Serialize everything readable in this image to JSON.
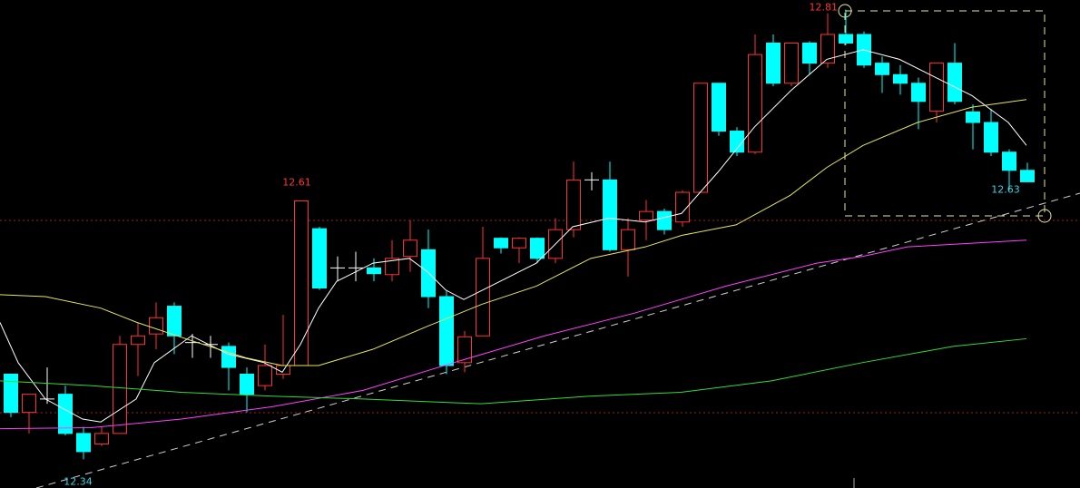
{
  "chart_data": {
    "type": "candlestick",
    "up_color": "#ff3232",
    "down_color": "#00ffff",
    "doji_color": "#ffffff",
    "ylim": [
      12.31,
      12.82
    ],
    "xlim": [
      -0.6,
      58.9
    ],
    "open": [
      12.429,
      12.389,
      12.403,
      12.408,
      12.367,
      12.356,
      12.367,
      12.46,
      12.471,
      12.5,
      12.462,
      12.46,
      12.458,
      12.429,
      12.417,
      12.429,
      12.438,
      12.581,
      12.54,
      12.54,
      12.54,
      12.533,
      12.552,
      12.559,
      12.51,
      12.441,
      12.469,
      12.571,
      12.561,
      12.571,
      12.55,
      12.58,
      12.632,
      12.632,
      12.559,
      12.59,
      12.599,
      12.588,
      12.619,
      12.733,
      12.683,
      12.661,
      12.775,
      12.733,
      12.775,
      12.754,
      12.784,
      12.784,
      12.754,
      12.742,
      12.733,
      12.704,
      12.754,
      12.703,
      12.692,
      12.661,
      12.642
    ],
    "high": [
      12.429,
      12.408,
      12.436,
      12.417,
      12.374,
      12.374,
      12.469,
      12.483,
      12.504,
      12.504,
      12.471,
      12.469,
      12.462,
      12.436,
      12.46,
      12.491,
      12.61,
      12.583,
      12.552,
      12.557,
      12.55,
      12.569,
      12.59,
      12.58,
      12.517,
      12.474,
      12.583,
      12.572,
      12.572,
      12.572,
      12.592,
      12.651,
      12.64,
      12.651,
      12.592,
      12.611,
      12.602,
      12.621,
      12.733,
      12.733,
      12.687,
      12.784,
      12.784,
      12.775,
      12.777,
      12.806,
      12.81,
      12.787,
      12.761,
      12.752,
      12.739,
      12.754,
      12.775,
      12.711,
      12.706,
      12.664,
      12.65
    ],
    "low": [
      12.384,
      12.367,
      12.398,
      12.365,
      12.34,
      12.354,
      12.367,
      12.427,
      12.455,
      12.45,
      12.446,
      12.446,
      12.412,
      12.389,
      12.412,
      12.424,
      12.438,
      12.517,
      12.526,
      12.526,
      12.526,
      12.526,
      12.536,
      12.498,
      12.429,
      12.431,
      12.469,
      12.555,
      12.545,
      12.545,
      12.545,
      12.572,
      12.621,
      12.557,
      12.531,
      12.569,
      12.575,
      12.583,
      12.619,
      12.678,
      12.657,
      12.659,
      12.73,
      12.73,
      12.742,
      12.749,
      12.773,
      12.749,
      12.723,
      12.721,
      12.685,
      12.692,
      12.711,
      12.664,
      12.657,
      12.621,
      12.63
    ],
    "close": [
      12.389,
      12.408,
      12.403,
      12.367,
      12.348,
      12.367,
      12.46,
      12.469,
      12.488,
      12.469,
      12.462,
      12.46,
      12.436,
      12.408,
      12.438,
      12.438,
      12.61,
      12.519,
      12.54,
      12.54,
      12.534,
      12.55,
      12.569,
      12.51,
      12.438,
      12.468,
      12.55,
      12.561,
      12.571,
      12.55,
      12.58,
      12.632,
      12.632,
      12.559,
      12.58,
      12.599,
      12.58,
      12.619,
      12.733,
      12.683,
      12.661,
      12.763,
      12.733,
      12.775,
      12.754,
      12.784,
      12.775,
      12.752,
      12.742,
      12.733,
      12.714,
      12.754,
      12.714,
      12.692,
      12.661,
      12.642,
      12.63
    ],
    "overlays": [
      {
        "color": "#ffffff",
        "x": [
          -0.6,
          0.4,
          1.9,
          3.95,
          4.95,
          6.9,
          7.9,
          9.95,
          11.95,
          13.95,
          14.95,
          15.95,
          16.95,
          17.95,
          19.95,
          21.95,
          22.95,
          23.95,
          24.95,
          26.95,
          28.95,
          30.95,
          32.95,
          34.95,
          36.95,
          38.95,
          40.95,
          42.95,
          44.95,
          46.95,
          48.95,
          50.95,
          52.95,
          54.95,
          55.95
        ],
        "values": [
          12.483,
          12.441,
          12.403,
          12.382,
          12.379,
          12.403,
          12.441,
          12.469,
          12.45,
          12.441,
          12.431,
          12.46,
          12.498,
          12.526,
          12.545,
          12.55,
          12.536,
          12.517,
          12.507,
          12.526,
          12.545,
          12.583,
          12.592,
          12.588,
          12.597,
          12.64,
          12.687,
          12.725,
          12.758,
          12.768,
          12.758,
          12.739,
          12.72,
          12.692,
          12.668
        ]
      },
      {
        "color": "#e6e65a",
        "x": [
          -0.6,
          1.9,
          4.95,
          6.95,
          9.95,
          12.95,
          14.95,
          16.95,
          19.95,
          22.95,
          25.95,
          28.95,
          31.95,
          34.95,
          36.95,
          39.95,
          42.95,
          44.95,
          46.95,
          49.95,
          52.95,
          55.95
        ],
        "values": [
          12.512,
          12.51,
          12.498,
          12.483,
          12.464,
          12.446,
          12.438,
          12.438,
          12.455,
          12.479,
          12.502,
          12.521,
          12.55,
          12.562,
          12.574,
          12.585,
          12.616,
          12.645,
          12.668,
          12.692,
          12.708,
          12.716
        ]
      },
      {
        "color": "#ff40ff",
        "x": [
          -0.6,
          4.4,
          9.4,
          14.4,
          19.4,
          24.4,
          29.4,
          34.4,
          39.4,
          44.4,
          46.9,
          49.4,
          55.95
        ],
        "values": [
          12.372,
          12.373,
          12.382,
          12.395,
          12.412,
          12.441,
          12.469,
          12.493,
          12.521,
          12.545,
          12.552,
          12.562,
          12.569
        ]
      },
      {
        "color": "#33dd33",
        "x": [
          -0.6,
          4.4,
          9.4,
          14.4,
          19.4,
          25.9,
          31.9,
          36.9,
          41.9,
          46.9,
          51.9,
          55.95
        ],
        "values": [
          12.422,
          12.417,
          12.41,
          12.406,
          12.403,
          12.398,
          12.406,
          12.41,
          12.422,
          12.441,
          12.458,
          12.466
        ]
      }
    ]
  }
}
